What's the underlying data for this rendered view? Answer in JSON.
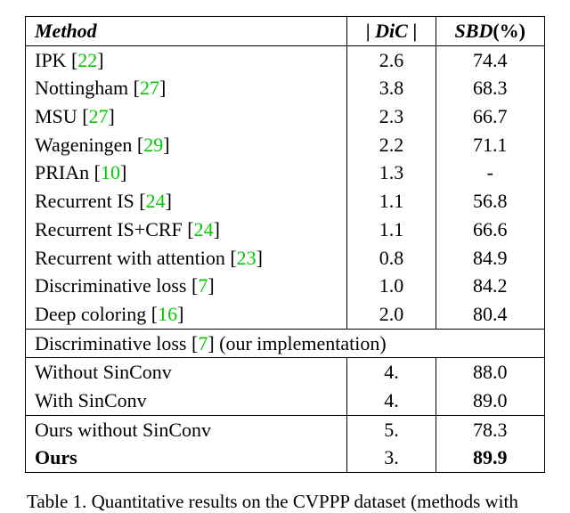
{
  "table": {
    "header": {
      "method": "Method",
      "dic_open": "| ",
      "dic_mid": "DiC",
      "dic_close": " |",
      "sbd_mid": "SBD",
      "sbd_close": "(%)"
    },
    "rows_top": [
      {
        "name": "IPK",
        "ref": "22",
        "dic": "2.6",
        "sbd": "74.4"
      },
      {
        "name": "Nottingham",
        "ref": "27",
        "dic": "3.8",
        "sbd": "68.3"
      },
      {
        "name": "MSU",
        "ref": "27",
        "dic": "2.3",
        "sbd": "66.7"
      },
      {
        "name": "Wageningen",
        "ref": "29",
        "dic": "2.2",
        "sbd": "71.1"
      },
      {
        "name": "PRIAn",
        "ref": "10",
        "dic": "1.3",
        "sbd": "-"
      },
      {
        "name": "Recurrent IS",
        "ref": "24",
        "dic": "1.1",
        "sbd": "56.8"
      },
      {
        "name": "Recurrent IS+CRF",
        "ref": "24",
        "dic": "1.1",
        "sbd": "66.6"
      },
      {
        "name": "Recurrent with attention",
        "ref": "23",
        "dic": "0.8",
        "sbd": "84.9"
      },
      {
        "name": "Discriminative loss",
        "ref": "7",
        "dic": "1.0",
        "sbd": "84.2"
      },
      {
        "name": "Deep coloring",
        "ref": "16",
        "dic": "2.0",
        "sbd": "80.4"
      }
    ],
    "impl_row": {
      "name": "Discriminative loss",
      "ref": "7",
      "suffix": " (our implementation)"
    },
    "rows_mid": [
      {
        "name": "Without SinConv",
        "dic": "4.",
        "sbd": "88.0"
      },
      {
        "name": "With SinConv",
        "dic": "4.",
        "sbd": "89.0"
      }
    ],
    "rows_bot": [
      {
        "name": "Ours without SinConv",
        "dic": "5.",
        "sbd": "78.3",
        "bold": false
      },
      {
        "name": "Ours",
        "dic": "3.",
        "sbd": "89.9",
        "bold": true
      }
    ]
  },
  "caption": {
    "label": "Table 1. ",
    "text_fragment": "Quantitative results on the CVPPP dataset (methods with"
  },
  "style": {
    "cite_color": "#00cc00"
  }
}
